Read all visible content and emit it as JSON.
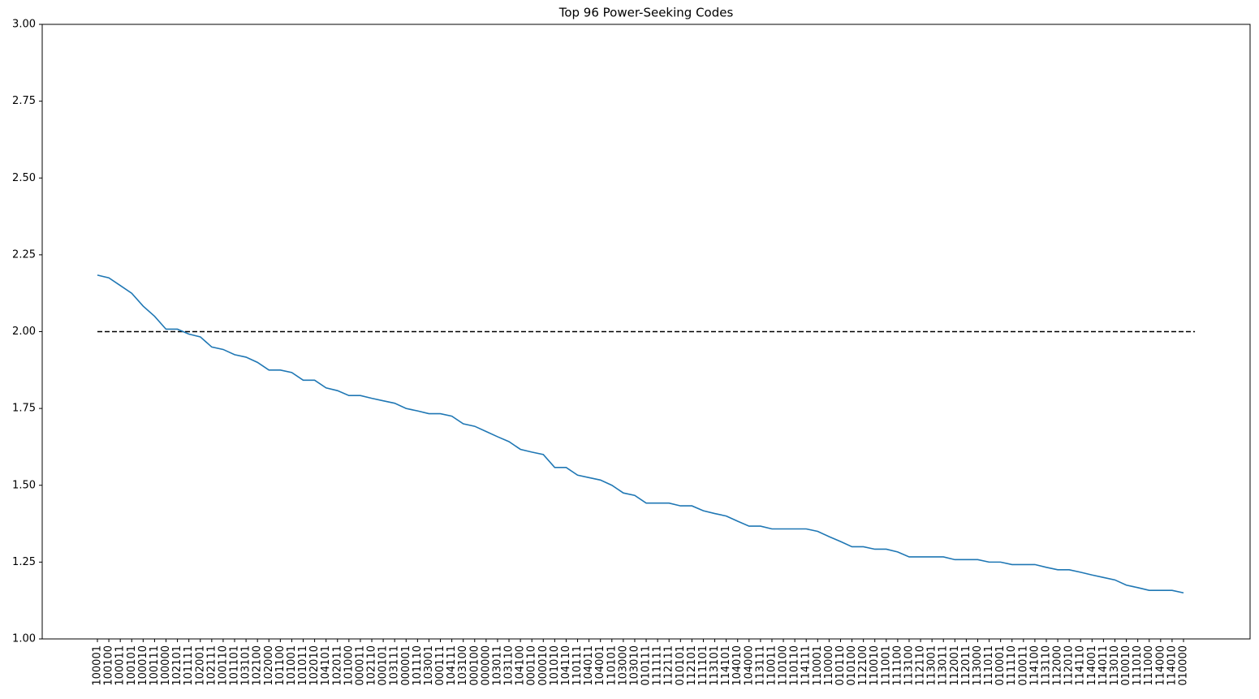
{
  "chart_data": {
    "type": "line",
    "title": "Top 96 Power-Seeking Codes",
    "categories": [
      "100001",
      "100100",
      "100011",
      "100101",
      "100010",
      "100111",
      "100000",
      "102101",
      "101111",
      "102001",
      "102111",
      "100110",
      "101101",
      "103101",
      "102100",
      "102000",
      "101100",
      "101001",
      "101011",
      "102010",
      "104101",
      "102011",
      "101000",
      "000011",
      "102110",
      "000101",
      "103111",
      "000001",
      "101110",
      "103001",
      "000111",
      "104111",
      "103100",
      "000100",
      "000000",
      "103011",
      "103110",
      "104100",
      "000110",
      "000010",
      "101010",
      "104110",
      "110111",
      "104011",
      "104001",
      "110101",
      "103000",
      "103010",
      "010111",
      "111111",
      "112111",
      "010101",
      "112101",
      "111101",
      "113101",
      "114101",
      "104010",
      "104000",
      "113111",
      "110011",
      "110100",
      "110110",
      "114111",
      "110001",
      "110000",
      "010110",
      "010100",
      "112100",
      "110010",
      "111001",
      "111100",
      "113100",
      "112110",
      "113001",
      "113011",
      "112001",
      "112011",
      "113000",
      "111011",
      "010001",
      "111110",
      "010011",
      "114100",
      "113110",
      "112000",
      "112010",
      "114110",
      "114001",
      "114011",
      "113010",
      "010010",
      "111010",
      "111000",
      "114000",
      "114010",
      "010000"
    ],
    "series": [
      {
        "color": "#1f77b4",
        "values": [
          2.184,
          2.175,
          2.15,
          2.125,
          2.083,
          2.05,
          2.008,
          2.008,
          1.992,
          1.983,
          1.95,
          1.942,
          1.925,
          1.917,
          1.9,
          1.875,
          1.875,
          1.867,
          1.842,
          1.842,
          1.817,
          1.808,
          1.792,
          1.792,
          1.783,
          1.775,
          1.767,
          1.75,
          1.742,
          1.733,
          1.733,
          1.725,
          1.7,
          1.692,
          1.675,
          1.658,
          1.642,
          1.617,
          1.608,
          1.6,
          1.558,
          1.558,
          1.533,
          1.525,
          1.517,
          1.5,
          1.475,
          1.467,
          1.442,
          1.442,
          1.442,
          1.433,
          1.433,
          1.417,
          1.408,
          1.4,
          1.383,
          1.367,
          1.367,
          1.358,
          1.358,
          1.358,
          1.358,
          1.35,
          1.333,
          1.317,
          1.3,
          1.3,
          1.292,
          1.292,
          1.283,
          1.267,
          1.267,
          1.267,
          1.267,
          1.258,
          1.258,
          1.258,
          1.25,
          1.25,
          1.242,
          1.242,
          1.242,
          1.233,
          1.225,
          1.225,
          1.217,
          1.208,
          1.2,
          1.192,
          1.175,
          1.167,
          1.158,
          1.158,
          1.158,
          1.15
        ]
      }
    ],
    "hline": {
      "value": 2,
      "color": "#000000",
      "dashed": true
    },
    "ylim": [
      1,
      3
    ],
    "yticks": [
      {
        "value": 1,
        "label": "1.00"
      },
      {
        "value": 1.25,
        "label": "1.25"
      },
      {
        "value": 1.5,
        "label": "1.50"
      },
      {
        "value": 1.75,
        "label": "1.75"
      },
      {
        "value": 2,
        "label": "2.00"
      },
      {
        "value": 2.25,
        "label": "2.25"
      },
      {
        "value": 2.5,
        "label": "2.50"
      },
      {
        "value": 2.75,
        "label": "2.75"
      },
      {
        "value": 3,
        "label": "3.00"
      }
    ]
  }
}
